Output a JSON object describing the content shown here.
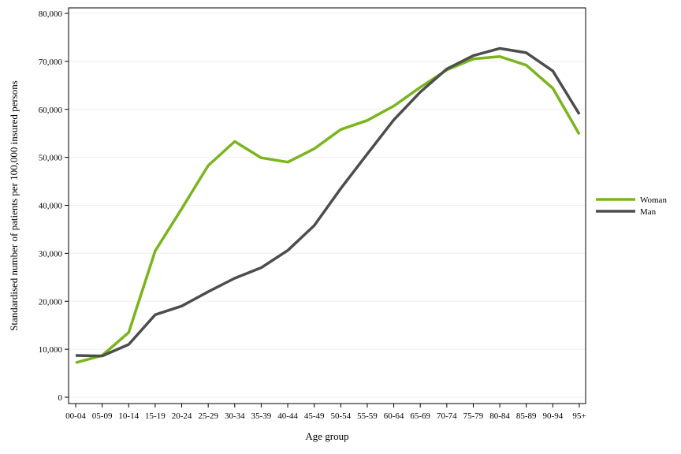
{
  "chart_data": {
    "type": "line",
    "title": "",
    "xlabel": "Age group",
    "ylabel": "Standardised number of patients per 100,000 insured persons",
    "categories": [
      "00-04",
      "05-09",
      "10-14",
      "15-19",
      "20-24",
      "25-29",
      "30-34",
      "35-39",
      "40-44",
      "45-49",
      "50-54",
      "55-59",
      "60-64",
      "65-69",
      "70-74",
      "75-79",
      "80-84",
      "85-89",
      "90-94",
      "95+"
    ],
    "ylim": [
      0,
      80000
    ],
    "yticks": [
      0,
      10000,
      20000,
      30000,
      40000,
      50000,
      60000,
      70000,
      80000
    ],
    "ytick_labels": [
      "0",
      "10,000",
      "20,000",
      "30,000",
      "40,000",
      "50,000",
      "60,000",
      "70,000",
      "80,000"
    ],
    "grid": true,
    "legend_position": "right",
    "series": [
      {
        "name": "Woman",
        "color": "#7ab51d",
        "values": [
          7200,
          8700,
          13500,
          30500,
          39300,
          48300,
          53300,
          49900,
          49000,
          51800,
          55800,
          57700,
          60700,
          64600,
          68200,
          70500,
          71000,
          69200,
          64400,
          54800
        ]
      },
      {
        "name": "Man",
        "color": "#4d4d4d",
        "values": [
          8700,
          8600,
          11000,
          17200,
          19000,
          22000,
          24800,
          27000,
          30600,
          35800,
          43500,
          50700,
          57800,
          63600,
          68400,
          71200,
          72700,
          71800,
          68000,
          59000
        ]
      }
    ]
  }
}
